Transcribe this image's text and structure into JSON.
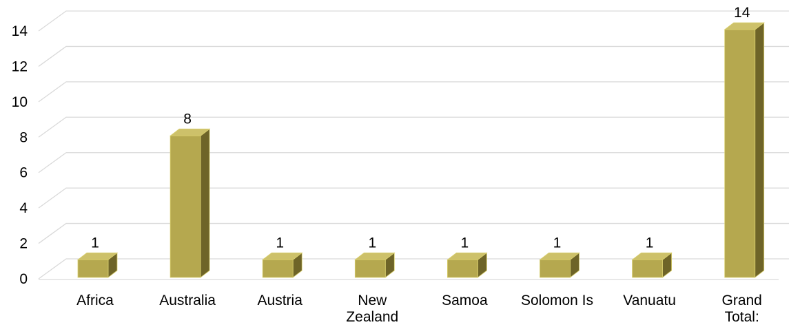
{
  "chart_data": {
    "type": "bar",
    "style": "3d-column",
    "categories": [
      [
        "Africa"
      ],
      [
        "Australia"
      ],
      [
        "Austria"
      ],
      [
        "New",
        "Zealand"
      ],
      [
        "Samoa"
      ],
      [
        "Solomon Is"
      ],
      [
        "Vanuatu"
      ],
      [
        "Grand",
        "Total:"
      ]
    ],
    "values": [
      1,
      8,
      1,
      1,
      1,
      1,
      1,
      14
    ],
    "data_labels": [
      "1",
      "8",
      "1",
      "1",
      "1",
      "1",
      "1",
      "14"
    ],
    "y_ticks": [
      "0",
      "2",
      "4",
      "6",
      "8",
      "10",
      "12",
      "14"
    ],
    "ylim": [
      0,
      14
    ],
    "grid": true,
    "legend": "none",
    "colors": {
      "front": "#b5a84f",
      "top": "#cdc16a",
      "side": "#6e6428",
      "edge": "#d9cf6e"
    }
  }
}
